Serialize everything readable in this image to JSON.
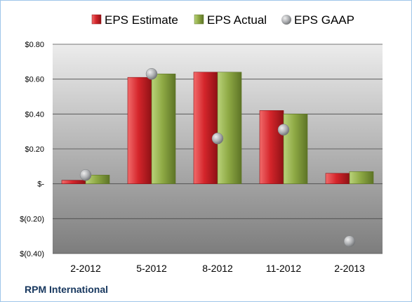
{
  "company_label": "RPM International",
  "colors": {
    "estimate": "#d4252b",
    "actual": "#8faa45",
    "gaap": "#a9abae",
    "plot_top": "#ececec",
    "plot_bottom": "#7d7d7d"
  },
  "chart_data": {
    "type": "bar",
    "categories": [
      "2-2012",
      "5-2012",
      "8-2012",
      "11-2012",
      "2-2013"
    ],
    "series": [
      {
        "name": "EPS Estimate",
        "kind": "bar",
        "values": [
          0.02,
          0.61,
          0.64,
          0.42,
          0.06
        ]
      },
      {
        "name": "EPS Actual",
        "kind": "bar",
        "values": [
          0.05,
          0.63,
          0.64,
          0.4,
          0.07
        ]
      },
      {
        "name": "EPS GAAP",
        "kind": "marker",
        "values": [
          0.05,
          0.63,
          0.26,
          0.31,
          -0.33
        ]
      }
    ],
    "ylim": [
      -0.4,
      0.8
    ],
    "yticks": [
      {
        "value": 0.8,
        "label": "$0.80"
      },
      {
        "value": 0.6,
        "label": "$0.60"
      },
      {
        "value": 0.4,
        "label": "$0.40"
      },
      {
        "value": 0.2,
        "label": "$0.20"
      },
      {
        "value": 0.0,
        "label": "$-"
      },
      {
        "value": -0.2,
        "label": "$(0.20)"
      },
      {
        "value": -0.4,
        "label": "$(0.40)"
      }
    ],
    "grid": true,
    "legend_position": "top"
  }
}
